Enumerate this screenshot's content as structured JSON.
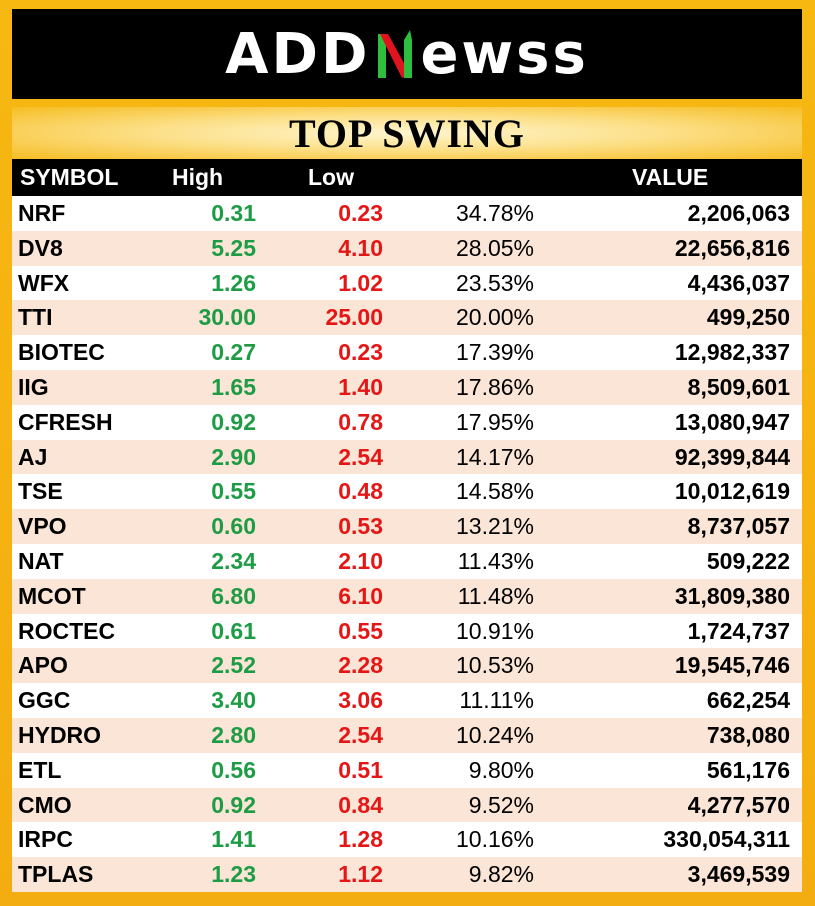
{
  "brand": {
    "logo_left": "ADD",
    "logo_right": "ewss",
    "colors": {
      "green": "#2fbf3f",
      "red": "#e0141c"
    }
  },
  "title": "TOP SWING",
  "columns": {
    "symbol": "SYMBOL",
    "high": "High",
    "low": "Low",
    "value": "VALUE"
  },
  "rows": [
    {
      "symbol": "NRF",
      "high": "0.31",
      "low": "0.23",
      "pct": "34.78%",
      "value": "2,206,063"
    },
    {
      "symbol": "DV8",
      "high": "5.25",
      "low": "4.10",
      "pct": "28.05%",
      "value": "22,656,816"
    },
    {
      "symbol": "WFX",
      "high": "1.26",
      "low": "1.02",
      "pct": "23.53%",
      "value": "4,436,037"
    },
    {
      "symbol": "TTI",
      "high": "30.00",
      "low": "25.00",
      "pct": "20.00%",
      "value": "499,250"
    },
    {
      "symbol": "BIOTEC",
      "high": "0.27",
      "low": "0.23",
      "pct": "17.39%",
      "value": "12,982,337"
    },
    {
      "symbol": "IIG",
      "high": "1.65",
      "low": "1.40",
      "pct": "17.86%",
      "value": "8,509,601"
    },
    {
      "symbol": "CFRESH",
      "high": "0.92",
      "low": "0.78",
      "pct": "17.95%",
      "value": "13,080,947"
    },
    {
      "symbol": "AJ",
      "high": "2.90",
      "low": "2.54",
      "pct": "14.17%",
      "value": "92,399,844"
    },
    {
      "symbol": "TSE",
      "high": "0.55",
      "low": "0.48",
      "pct": "14.58%",
      "value": "10,012,619"
    },
    {
      "symbol": "VPO",
      "high": "0.60",
      "low": "0.53",
      "pct": "13.21%",
      "value": "8,737,057"
    },
    {
      "symbol": "NAT",
      "high": "2.34",
      "low": "2.10",
      "pct": "11.43%",
      "value": "509,222"
    },
    {
      "symbol": "MCOT",
      "high": "6.80",
      "low": "6.10",
      "pct": "11.48%",
      "value": "31,809,380"
    },
    {
      "symbol": "ROCTEC",
      "high": "0.61",
      "low": "0.55",
      "pct": "10.91%",
      "value": "1,724,737"
    },
    {
      "symbol": "APO",
      "high": "2.52",
      "low": "2.28",
      "pct": "10.53%",
      "value": "19,545,746"
    },
    {
      "symbol": "GGC",
      "high": "3.40",
      "low": "3.06",
      "pct": "11.11%",
      "value": "662,254"
    },
    {
      "symbol": "HYDRO",
      "high": "2.80",
      "low": "2.54",
      "pct": "10.24%",
      "value": "738,080"
    },
    {
      "symbol": "ETL",
      "high": "0.56",
      "low": "0.51",
      "pct": "9.80%",
      "value": "561,176"
    },
    {
      "symbol": "CMO",
      "high": "0.92",
      "low": "0.84",
      "pct": "9.52%",
      "value": "4,277,570"
    },
    {
      "symbol": "IRPC",
      "high": "1.41",
      "low": "1.28",
      "pct": "10.16%",
      "value": "330,054,311"
    },
    {
      "symbol": "TPLAS",
      "high": "1.23",
      "low": "1.12",
      "pct": "9.82%",
      "value": "3,469,539"
    }
  ]
}
